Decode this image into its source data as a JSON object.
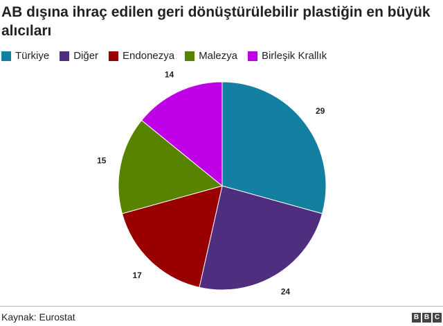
{
  "chart_data": {
    "type": "pie",
    "title": "AB dışına ihraç edilen geri dönüştürülebilir plastiğin en büyük alıcıları",
    "categories": [
      "Türkiye",
      "Diğer",
      "Endonezya",
      "Malezya",
      "Birleşik Krallık"
    ],
    "values": [
      29,
      24,
      17,
      15,
      14
    ],
    "colors": [
      "#1380A1",
      "#4F2D7F",
      "#990000",
      "#588300",
      "#BF00E6"
    ],
    "legend_position": "top",
    "start_angle": "12 o'clock, clockwise"
  },
  "footer": {
    "source": "Kaynak: Eurostat",
    "logo_text": "BBC"
  }
}
